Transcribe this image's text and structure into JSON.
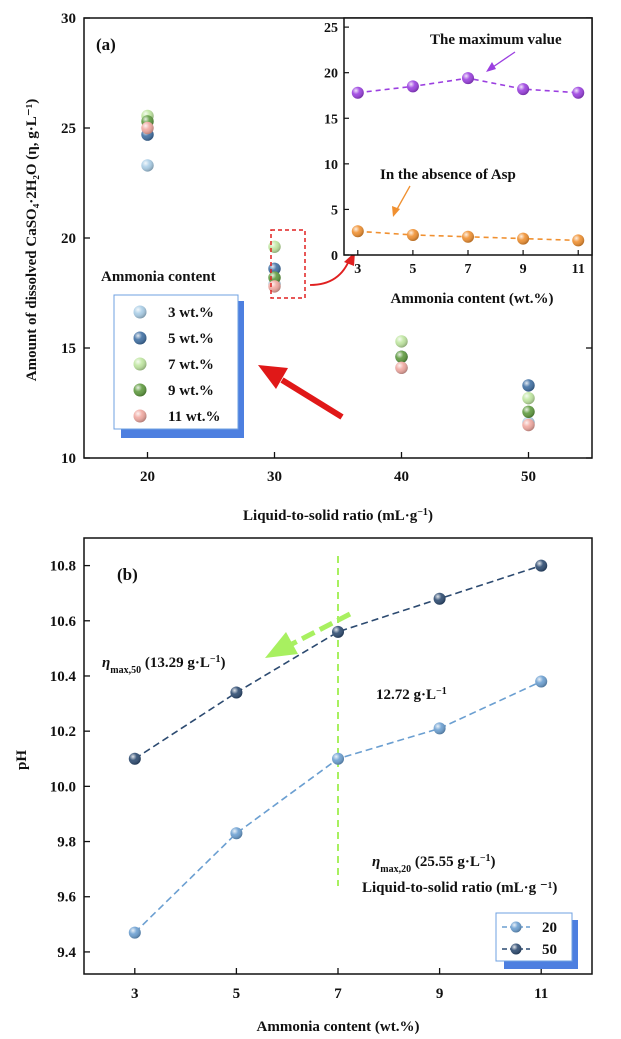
{
  "chart_data": [
    {
      "type": "scatter",
      "panel_label": "(a)",
      "xlabel_main": "Liquid-to-solid ratio (mL·g",
      "xlabel_sup": "−1",
      "xlabel_end": ")",
      "ylabel_text": "Amount of dissolved CaSO₄·2H₂O (η, g·L⁻¹)",
      "xlim": [
        15,
        55
      ],
      "ylim": [
        10,
        30
      ],
      "xticks": [
        20,
        30,
        40,
        50
      ],
      "yticks": [
        10,
        15,
        20,
        25,
        30
      ],
      "legend_title": "Ammonia content",
      "legend_placement": "middle-left",
      "series": [
        {
          "name": "3 wt.%",
          "color": "#a9cde6",
          "x": [
            20,
            30,
            40,
            50
          ],
          "y": [
            23.3,
            17.9,
            14.1,
            11.6
          ]
        },
        {
          "name": "5 wt.%",
          "color": "#3f6fa3",
          "x": [
            20,
            30,
            40,
            50
          ],
          "y": [
            24.7,
            18.6,
            14.6,
            13.3
          ]
        },
        {
          "name": "7 wt.%",
          "color": "#bfe6a0",
          "x": [
            20,
            30,
            40,
            50
          ],
          "y": [
            25.55,
            19.6,
            15.3,
            12.72
          ]
        },
        {
          "name": "9 wt.%",
          "color": "#5e9a3e",
          "x": [
            20,
            30,
            40,
            50
          ],
          "y": [
            25.3,
            18.2,
            14.6,
            12.1
          ]
        },
        {
          "name": "11 wt.%",
          "color": "#f0a8a0",
          "x": [
            20,
            30,
            40,
            50
          ],
          "y": [
            25.0,
            17.8,
            14.1,
            11.5
          ]
        }
      ]
    },
    {
      "type": "line",
      "panel_label": "inset",
      "xlabel": "Ammonia content (wt.%)",
      "xlim": [
        2.5,
        11.5
      ],
      "ylim": [
        0,
        26
      ],
      "xticks": [
        3,
        5,
        7,
        9,
        11
      ],
      "yticks": [
        0,
        5,
        10,
        15,
        20,
        25
      ],
      "annotations": [
        "The maximum value",
        "In the absence of  Asp"
      ],
      "series": [
        {
          "name": "",
          "color": "#9b3fe0",
          "x": [
            3,
            5,
            7,
            9,
            11
          ],
          "y": [
            17.8,
            18.5,
            19.4,
            18.2,
            17.8
          ]
        },
        {
          "name": "",
          "color": "#f09030",
          "x": [
            3,
            5,
            7,
            9,
            11
          ],
          "y": [
            2.6,
            2.2,
            2.0,
            1.8,
            1.6
          ]
        }
      ]
    },
    {
      "type": "line",
      "panel_label": "(b)",
      "xlabel": "Ammonia content (wt.%)",
      "ylabel": "pH",
      "xlim": [
        2,
        12
      ],
      "ylim": [
        9.32,
        10.9
      ],
      "xticks": [
        3,
        5,
        7,
        9,
        11
      ],
      "yticks": [
        9.4,
        9.6,
        9.8,
        10.0,
        10.2,
        10.4,
        10.6,
        10.8
      ],
      "legend_title": "Liquid-to-solid ratio (mL·g ⁻¹)",
      "legend_placement": "bottom-right",
      "annotations": {
        "eta50_sym": "η",
        "eta50_sub": "max,50",
        "eta50_val": " (13.29 g·L",
        "eta50_sup": "−1",
        "eta50_end": ")",
        "eta20_sym": "η",
        "eta20_sub": "max,20",
        "eta20_val": " (25.55 g·L",
        "eta20_sup": "−1",
        "eta20_end": ")",
        "mid_val": "12.72 g·L",
        "mid_sup": "−1"
      },
      "series": [
        {
          "name": "20",
          "color": "#6b9fd1",
          "x": [
            3,
            5,
            7,
            9,
            11
          ],
          "y": [
            9.47,
            9.83,
            10.1,
            10.21,
            10.38
          ]
        },
        {
          "name": "50",
          "color": "#2c4a70",
          "x": [
            3,
            5,
            7,
            9,
            11
          ],
          "y": [
            10.1,
            10.34,
            10.56,
            10.68,
            10.8
          ]
        }
      ]
    }
  ]
}
